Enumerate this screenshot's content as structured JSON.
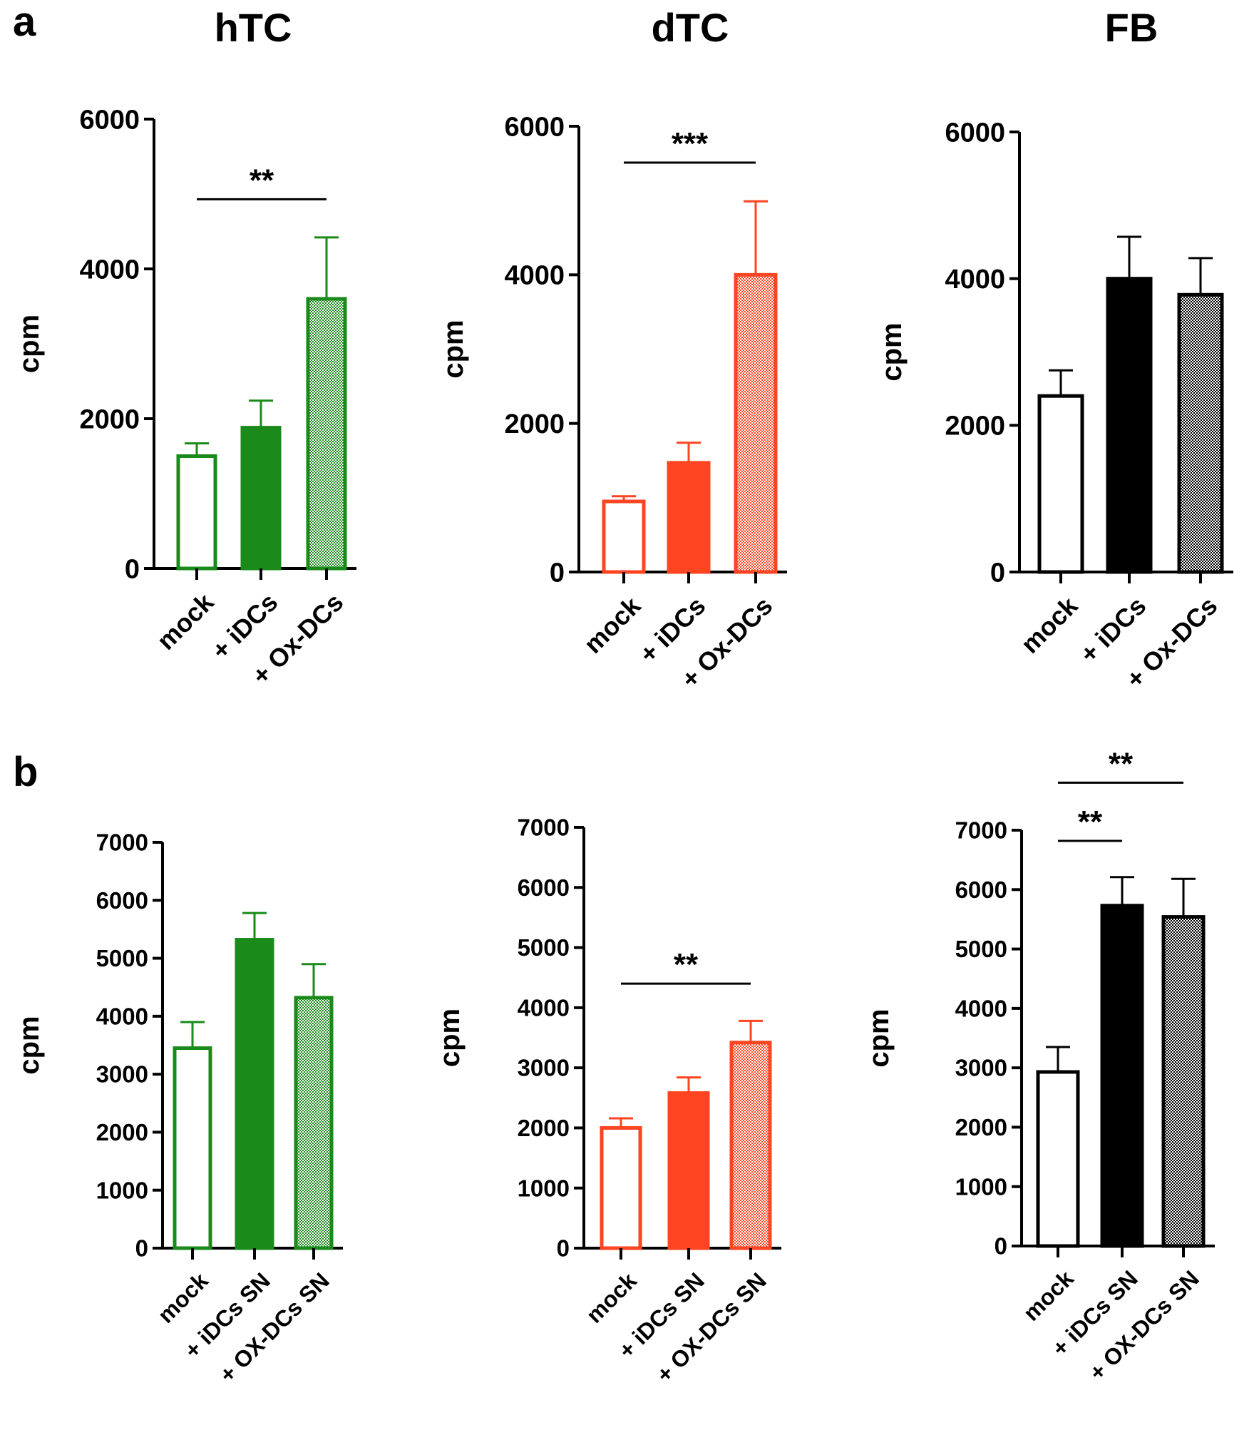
{
  "panel_labels": [
    "a",
    "b"
  ],
  "colors": {
    "hTC": "#1a8a1a",
    "dTC": "#ff4422",
    "FB": "#000000",
    "axis": "#000000"
  },
  "chart_data": [
    {
      "type": "bar",
      "panel": "a",
      "title": "hTC",
      "ylabel": "cpm",
      "color_key": "hTC",
      "categories": [
        "mock",
        "+ iDCs",
        "+ Ox-DCs"
      ],
      "values": [
        1500,
        1880,
        3600
      ],
      "errors": [
        170,
        360,
        820
      ],
      "fills": [
        "open",
        "solid",
        "hatched"
      ],
      "ylim": [
        0,
        6000
      ],
      "yticks": [
        0,
        2000,
        4000,
        6000
      ],
      "significance": [
        {
          "from": 0,
          "to": 2,
          "label": "**",
          "y": 4930
        }
      ]
    },
    {
      "type": "bar",
      "panel": "a",
      "title": "dTC",
      "ylabel": "cpm",
      "color_key": "dTC",
      "categories": [
        "mock",
        "+ iDCs",
        "+ Ox-DCs"
      ],
      "values": [
        950,
        1470,
        4000
      ],
      "errors": [
        70,
        270,
        990
      ],
      "fills": [
        "open",
        "solid",
        "hatched"
      ],
      "ylim": [
        0,
        6000
      ],
      "yticks": [
        0,
        2000,
        4000,
        6000
      ],
      "significance": [
        {
          "from": 0,
          "to": 2,
          "label": "***",
          "y": 5510
        }
      ]
    },
    {
      "type": "bar",
      "panel": "a",
      "title": "FB",
      "ylabel": "cpm",
      "color_key": "FB",
      "categories": [
        "mock",
        "+ iDCs",
        "+ Ox-DCs"
      ],
      "values": [
        2400,
        4000,
        3780
      ],
      "errors": [
        350,
        570,
        500
      ],
      "fills": [
        "open",
        "solid",
        "hatched"
      ],
      "ylim": [
        0,
        6000
      ],
      "yticks": [
        0,
        2000,
        4000,
        6000
      ],
      "significance": []
    },
    {
      "type": "bar",
      "panel": "b",
      "title": "",
      "ylabel": "cpm",
      "color_key": "hTC",
      "categories": [
        "mock",
        "+ iDCs SN",
        "+ OX-DCs SN"
      ],
      "values": [
        3450,
        5320,
        4320
      ],
      "errors": [
        450,
        460,
        580
      ],
      "fills": [
        "open",
        "solid",
        "hatched"
      ],
      "ylim": [
        0,
        7000
      ],
      "yticks": [
        0,
        1000,
        2000,
        3000,
        4000,
        5000,
        6000,
        7000
      ],
      "significance": []
    },
    {
      "type": "bar",
      "panel": "b",
      "title": "",
      "ylabel": "cpm",
      "color_key": "dTC",
      "categories": [
        "mock",
        "+ iDCs SN",
        "+ OX-DCs SN"
      ],
      "values": [
        2000,
        2580,
        3420
      ],
      "errors": [
        160,
        260,
        360
      ],
      "fills": [
        "open",
        "solid",
        "hatched"
      ],
      "ylim": [
        0,
        7000
      ],
      "yticks": [
        0,
        1000,
        2000,
        3000,
        4000,
        5000,
        6000,
        7000
      ],
      "significance": [
        {
          "from": 0,
          "to": 2,
          "label": "**",
          "y": 4400
        }
      ]
    },
    {
      "type": "bar",
      "panel": "b",
      "title": "",
      "ylabel": "cpm",
      "color_key": "FB",
      "categories": [
        "mock",
        "+ iDCs SN",
        "+ OX-DCs SN"
      ],
      "values": [
        2930,
        5730,
        5540
      ],
      "errors": [
        420,
        480,
        640
      ],
      "fills": [
        "open",
        "solid",
        "hatched"
      ],
      "ylim": [
        0,
        7000
      ],
      "yticks": [
        0,
        1000,
        2000,
        3000,
        4000,
        5000,
        6000,
        7000
      ],
      "significance": [
        {
          "from": 0,
          "to": 1,
          "label": "**",
          "y": 6820
        },
        {
          "from": 0,
          "to": 2,
          "label": "**",
          "y": 7800
        }
      ]
    }
  ]
}
